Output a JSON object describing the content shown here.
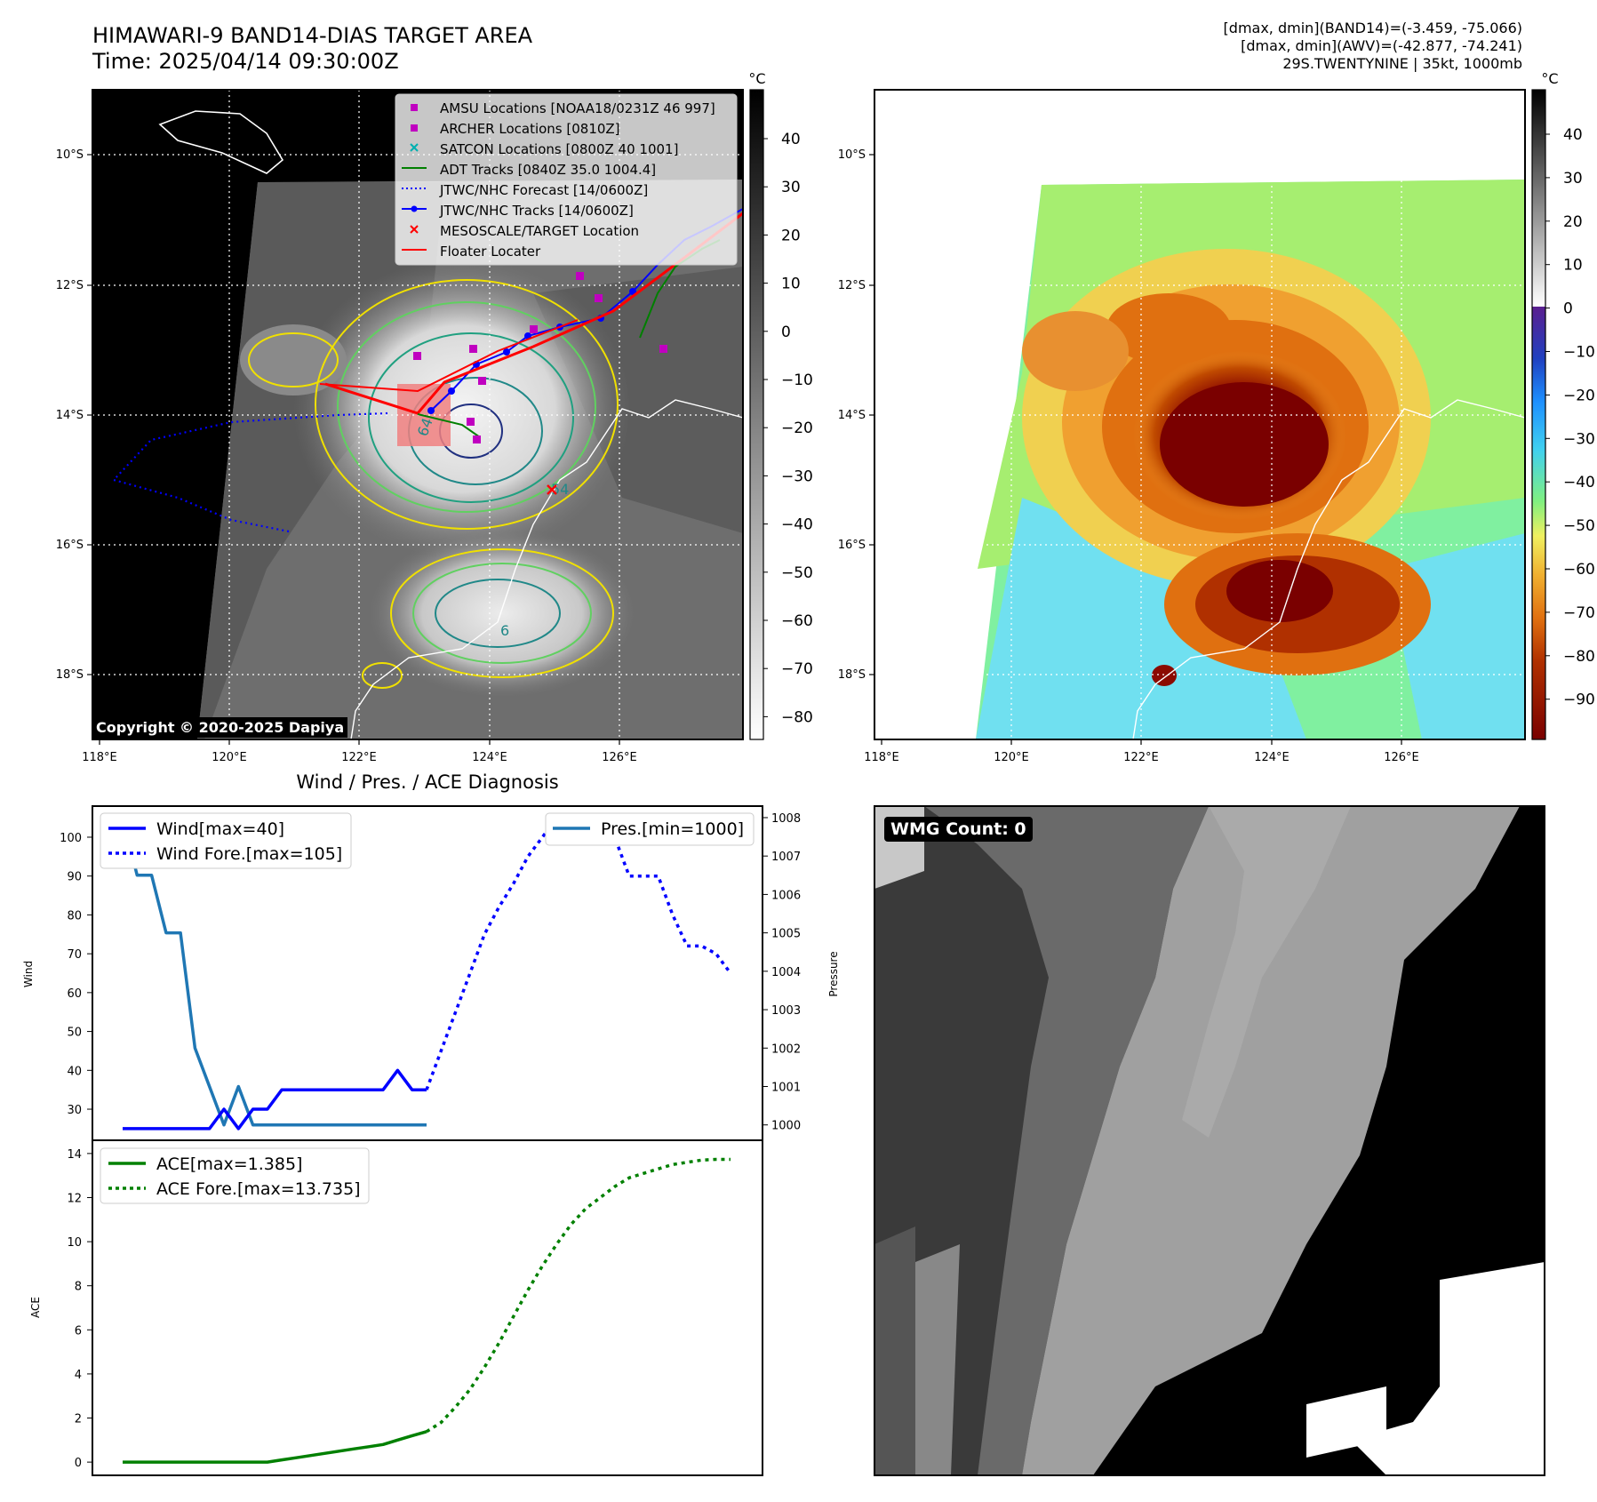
{
  "header": {
    "title_line1": "HIMAWARI-9 BAND14-DIAS TARGET AREA",
    "title_line2": "Time: 2025/04/14 09:30:00Z",
    "info_line1": "[dmax, dmin](BAND14)=(-3.459, -75.066)",
    "info_line2": "[dmax, dmin](AWV)=(-42.877, -74.241)",
    "info_line3": "29S.TWENTYNINE | 35kt, 1000mb"
  },
  "map": {
    "lon_ticks": [
      "118°E",
      "120°E",
      "122°E",
      "124°E",
      "126°E"
    ],
    "lat_ticks": [
      "10°S",
      "12°S",
      "14°S",
      "16°S",
      "18°S"
    ],
    "copyright": "Copyright © 2020-2025 Dapiya",
    "contour_labels": [
      "64",
      "54",
      "6"
    ],
    "legend": [
      {
        "label": "AMSU Locations [NOAA18/0231Z 46 997]",
        "color": "#c000c0",
        "marker": "square"
      },
      {
        "label": "ARCHER Locations [0810Z]",
        "color": "#c000c0",
        "marker": "square"
      },
      {
        "label": "SATCON Locations [0800Z 40 1001]",
        "color": "#00b0b0",
        "marker": "x"
      },
      {
        "label": "ADT Tracks [0840Z 35.0 1004.4]",
        "color": "#008000",
        "marker": "line"
      },
      {
        "label": "JTWC/NHC Forecast [14/0600Z]",
        "color": "#0000ff",
        "marker": "dotted"
      },
      {
        "label": "JTWC/NHC Tracks [14/0600Z]",
        "color": "#0000ff",
        "marker": "line-dot"
      },
      {
        "label": "MESOSCALE/TARGET Location",
        "color": "#ff0000",
        "marker": "x"
      },
      {
        "label": "Floater Locater",
        "color": "#ff0000",
        "marker": "line"
      }
    ],
    "colorbar_gray": {
      "unit": "°C",
      "ticks": [
        "40",
        "30",
        "20",
        "10",
        "0",
        "−10",
        "−20",
        "−30",
        "−40",
        "−50",
        "−60",
        "−70",
        "−80"
      ]
    },
    "colorbar_color": {
      "unit": "°C",
      "ticks": [
        "40",
        "30",
        "20",
        "10",
        "0",
        "−10",
        "−20",
        "−30",
        "−40",
        "−50",
        "−60",
        "−70",
        "−80",
        "−90"
      ]
    }
  },
  "diagnosis": {
    "title": "Wind / Pres. / ACE Diagnosis",
    "wind_axis_label": "Wind",
    "pres_axis_label": "Pressure",
    "ace_axis_label": "ACE",
    "wind_ticks": [
      "100",
      "90",
      "80",
      "70",
      "60",
      "50",
      "40",
      "30"
    ],
    "pres_ticks": [
      "1008",
      "1007",
      "1006",
      "1005",
      "1004",
      "1003",
      "1002",
      "1001",
      "1000"
    ],
    "ace_ticks": [
      "14",
      "12",
      "10",
      "8",
      "6",
      "4",
      "2",
      "0"
    ],
    "legend_wind": "Wind[max=40]",
    "legend_wind_fore": "Wind Fore.[max=105]",
    "legend_pres": "Pres.[min=1000]",
    "legend_ace": "ACE[max=1.385]",
    "legend_ace_fore": "ACE Fore.[max=13.735]",
    "colors": {
      "wind": "#0000ff",
      "pres": "#1f77b4",
      "ace": "#008000"
    }
  },
  "wmg": {
    "label": "WMG Count: 0"
  },
  "chart_data": [
    {
      "type": "line",
      "title": "Wind / Pres. / ACE Diagnosis",
      "ylabel": "Wind",
      "ylim": [
        22,
        108
      ],
      "series": [
        {
          "name": "Wind[max=40]",
          "x": [
            0,
            1,
            2,
            3,
            4,
            5,
            6,
            7,
            8,
            9,
            10,
            11,
            12,
            13,
            14,
            15,
            16,
            17,
            18,
            19,
            20,
            21
          ],
          "values": [
            25,
            25,
            25,
            25,
            25,
            25,
            25,
            30,
            25,
            30,
            30,
            35,
            35,
            35,
            35,
            35,
            35,
            35,
            35,
            40,
            35,
            35
          ]
        },
        {
          "name": "Wind Fore.[max=105]",
          "x": [
            21,
            22,
            23,
            24,
            25,
            26,
            27,
            28,
            29,
            30,
            31,
            32,
            33,
            34,
            35,
            36,
            37,
            38,
            39,
            40,
            41,
            42
          ],
          "values": [
            35,
            45,
            55,
            65,
            75,
            82,
            88,
            95,
            100,
            105,
            103,
            102,
            102,
            100,
            90,
            90,
            90,
            80,
            72,
            72,
            70,
            65
          ]
        }
      ]
    },
    {
      "type": "line",
      "ylabel": "Pressure",
      "ylim": [
        999.6,
        1008.3
      ],
      "series": [
        {
          "name": "Pres.[min=1000]",
          "x": [
            0,
            1,
            2,
            3,
            4,
            5,
            6,
            7,
            8,
            9,
            10,
            11,
            12,
            13,
            14,
            15,
            16,
            17,
            18,
            19,
            20,
            21
          ],
          "values": [
            1008,
            1006.5,
            1006.5,
            1005,
            1005,
            1002,
            1001,
            1000,
            1001,
            1000,
            1000,
            1000,
            1000,
            1000,
            1000,
            1000,
            1000,
            1000,
            1000,
            1000,
            1000,
            1000
          ]
        }
      ]
    },
    {
      "type": "line",
      "ylabel": "ACE",
      "ylim": [
        -0.6,
        14.6
      ],
      "series": [
        {
          "name": "ACE[max=1.385]",
          "x": [
            0,
            1,
            2,
            3,
            4,
            5,
            6,
            7,
            8,
            9,
            10,
            11,
            12,
            13,
            14,
            15,
            16,
            17,
            18,
            19,
            20,
            21
          ],
          "values": [
            0,
            0,
            0,
            0,
            0,
            0,
            0,
            0,
            0,
            0,
            0,
            0.1,
            0.2,
            0.3,
            0.4,
            0.5,
            0.6,
            0.7,
            0.8,
            1.0,
            1.2,
            1.385
          ]
        },
        {
          "name": "ACE Fore.[max=13.735]",
          "x": [
            21,
            22,
            23,
            24,
            25,
            26,
            27,
            28,
            29,
            30,
            31,
            32,
            33,
            34,
            35,
            36,
            37,
            38,
            39,
            40,
            41,
            42
          ],
          "values": [
            1.385,
            1.8,
            2.5,
            3.3,
            4.3,
            5.4,
            6.6,
            7.8,
            8.9,
            9.9,
            10.8,
            11.5,
            12.0,
            12.5,
            12.9,
            13.1,
            13.3,
            13.5,
            13.6,
            13.7,
            13.735,
            13.735
          ]
        }
      ]
    }
  ]
}
